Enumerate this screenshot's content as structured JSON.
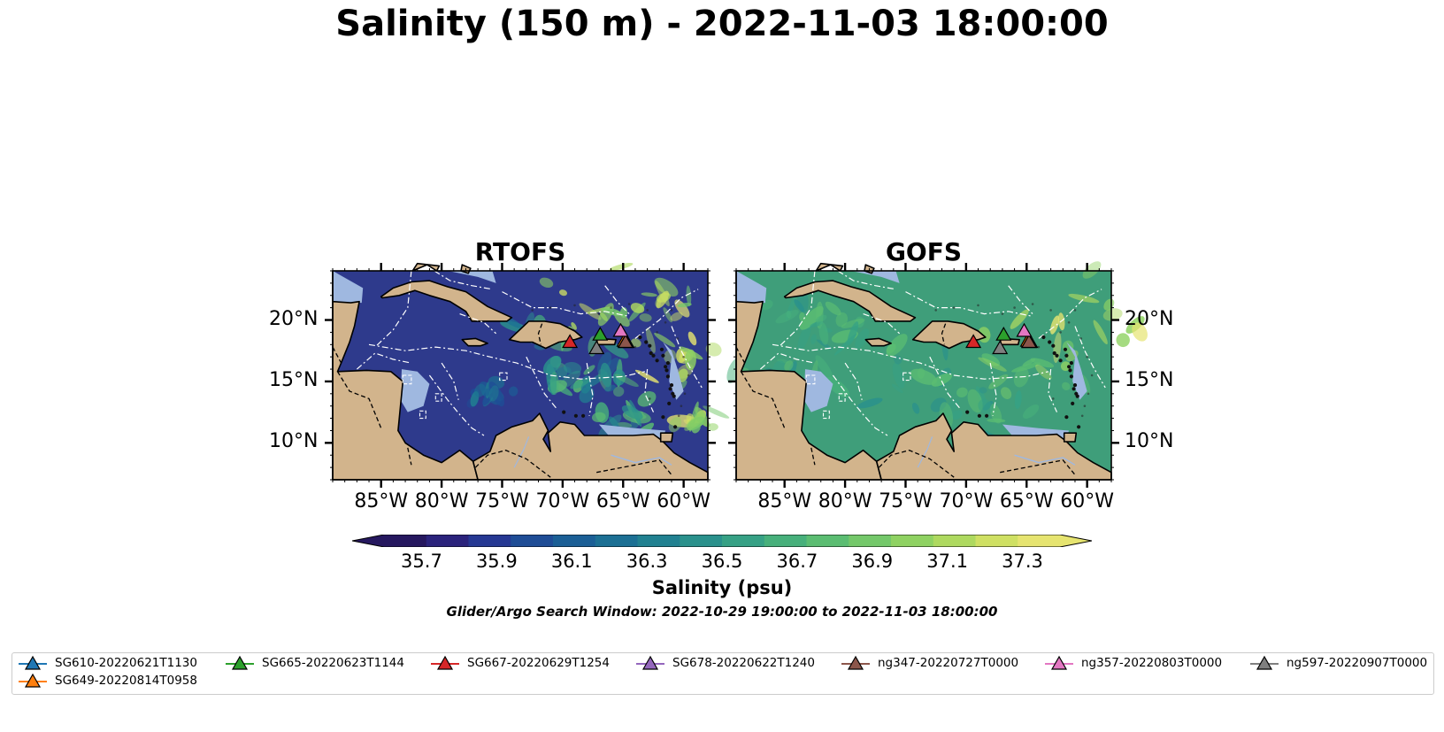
{
  "title": "Salinity (150 m) - 2022-11-03 18:00:00",
  "panels": [
    {
      "title": "RTOFS",
      "style": "rtofs"
    },
    {
      "title": "GOFS",
      "style": "gofs"
    }
  ],
  "map": {
    "lon_range": [
      -89,
      -58
    ],
    "lat_range": [
      7,
      24
    ],
    "lon_ticks": [
      {
        "value": -85,
        "label": "85°W"
      },
      {
        "value": -80,
        "label": "80°W"
      },
      {
        "value": -75,
        "label": "75°W"
      },
      {
        "value": -70,
        "label": "70°W"
      },
      {
        "value": -65,
        "label": "65°W"
      },
      {
        "value": -60,
        "label": "60°W"
      }
    ],
    "lat_ticks": [
      {
        "value": 20,
        "label": "20°N"
      },
      {
        "value": 15,
        "label": "15°N"
      },
      {
        "value": 10,
        "label": "10°N"
      }
    ],
    "land_color": "#d2b48c",
    "shelf_color": "#9fb8e0",
    "rtofs_ocean_color": "#2e3a8c",
    "gofs_ocean_color": "#3f9e7a"
  },
  "colorbar": {
    "label": "Salinity (psu)",
    "min": 35.6,
    "max": 37.4,
    "ticks": [
      "35.7",
      "35.9",
      "36.1",
      "36.3",
      "36.5",
      "36.7",
      "36.9",
      "37.1",
      "37.3"
    ],
    "colors": [
      "#26185f",
      "#2b237c",
      "#263893",
      "#1f4d96",
      "#1b5f96",
      "#1c7094",
      "#218191",
      "#2a918c",
      "#36a185",
      "#47b07b",
      "#5bbd72",
      "#74c86a",
      "#8fd262",
      "#aed95f",
      "#cfe063",
      "#e6e470"
    ]
  },
  "search_window": "Glider/Argo Search Window: 2022-10-29 19:00:00 to 2022-11-03 18:00:00",
  "gliders": [
    {
      "name": "SG610-20220621T1130",
      "color": "#1f77b4",
      "lon": -64.7,
      "lat": 18.2
    },
    {
      "name": "SG649-20220814T0958",
      "color": "#ff7f0e",
      "lon": -64.9,
      "lat": 18.3
    },
    {
      "name": "SG665-20220623T1144",
      "color": "#2ca02c",
      "lon": -66.9,
      "lat": 18.8
    },
    {
      "name": "SG667-20220629T1254",
      "color": "#d62728",
      "lon": -69.4,
      "lat": 18.2
    },
    {
      "name": "SG678-20220622T1240",
      "color": "#9467bd",
      "lon": -64.8,
      "lat": 18.2
    },
    {
      "name": "ng347-20220727T0000",
      "color": "#8c564b",
      "lon": -64.8,
      "lat": 18.2
    },
    {
      "name": "ng357-20220803T0000",
      "color": "#e377c2",
      "lon": -65.2,
      "lat": 19.1
    },
    {
      "name": "ng597-20220907T0000",
      "color": "#7f7f7f",
      "lon": -67.2,
      "lat": 17.7
    }
  ]
}
